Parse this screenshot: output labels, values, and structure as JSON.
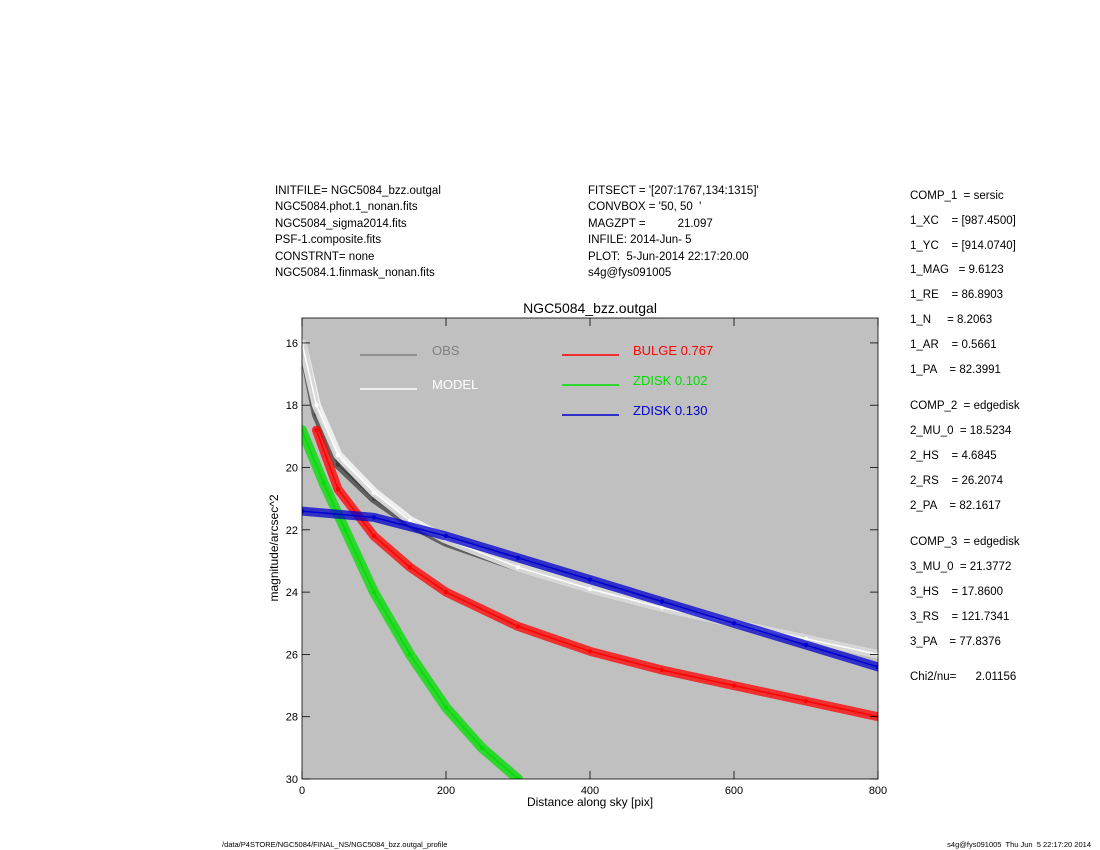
{
  "header_left": [
    "INITFILE= NGC5084_bzz.outgal",
    "NGC5084.phot.1_nonan.fits",
    "NGC5084_sigma2014.fits",
    "PSF-1.composite.fits",
    "CONSTRNT= none",
    "NGC5084.1.finmask_nonan.fits"
  ],
  "header_mid": [
    "FITSECT = '[207:1767,134:1315]'",
    "CONVBOX = '50, 50  '",
    "MAGZPT =          21.097",
    "INFILE: 2014-Jun- 5",
    "PLOT:  5-Jun-2014 22:17:20.00",
    "s4g@fys091005"
  ],
  "components": [
    {
      "lines": [
        "COMP_1  = sersic",
        "1_XC    = [987.4500]",
        "1_YC    = [914.0740]",
        "1_MAG   = 9.6123",
        "1_RE    = 86.8903",
        "1_N     = 8.2063",
        "1_AR    = 0.5661",
        "1_PA    = 82.3991"
      ]
    },
    {
      "lines": [
        "COMP_2  = edgedisk",
        "2_MU_0  = 18.5234",
        "2_HS    = 4.6845",
        "2_RS    = 26.2074",
        "2_PA    = 82.1617"
      ]
    },
    {
      "lines": [
        "COMP_3  = edgedisk",
        "3_MU_0  = 21.3772",
        "3_HS    = 17.8600",
        "3_RS    = 121.7341",
        "3_PA    = 77.8376"
      ]
    }
  ],
  "chi2": "Chi2/nu=      2.01156",
  "footer_left": "/data/P4STORE/NGC5084/FINAL_NS/NGC5084_bzz.outgal_profile",
  "footer_right": "s4g@fys091005  Thu Jun  5 22:17:20 2014",
  "chart_data": {
    "type": "scatter",
    "title": "NGC5084_bzz.outgal",
    "xlabel": "Distance along sky [pix]",
    "ylabel": "magnitude/arcsec^2",
    "xlim": [
      0,
      800
    ],
    "ylim": [
      30,
      15.2
    ],
    "y_inverted": true,
    "x_ticks": [
      0,
      200,
      400,
      600,
      800
    ],
    "y_ticks": [
      16,
      18,
      20,
      22,
      24,
      26,
      28,
      30
    ],
    "background": "#c0c0c0",
    "legend_placement": "top",
    "legend": [
      {
        "label": "OBS",
        "color": "#808080"
      },
      {
        "label": "MODEL",
        "color": "#ffffff"
      },
      {
        "label": "BULGE  0.767",
        "color": "#ff0000"
      },
      {
        "label": "ZDISK  0.102",
        "color": "#00dd00"
      },
      {
        "label": "ZDISK  0.130",
        "color": "#0000cc"
      }
    ],
    "series": [
      {
        "color": "#404040",
        "points": [
          [
            0,
            16.0
          ],
          [
            20,
            18.3
          ],
          [
            50,
            19.9
          ],
          [
            100,
            21.0
          ],
          [
            150,
            21.8
          ],
          [
            200,
            22.4
          ],
          [
            300,
            23.2
          ],
          [
            400,
            23.9
          ],
          [
            500,
            24.5
          ],
          [
            600,
            25.0
          ],
          [
            700,
            25.5
          ],
          [
            800,
            26.0
          ]
        ]
      },
      {
        "color": "#ffffff",
        "points": [
          [
            0,
            16.0
          ],
          [
            20,
            18.0
          ],
          [
            50,
            19.6
          ],
          [
            100,
            20.8
          ],
          [
            150,
            21.7
          ],
          [
            200,
            22.3
          ],
          [
            300,
            23.2
          ],
          [
            400,
            23.9
          ],
          [
            500,
            24.5
          ],
          [
            600,
            25.0
          ],
          [
            700,
            25.5
          ],
          [
            800,
            26.0
          ]
        ]
      },
      {
        "color": "#ff0000",
        "points": [
          [
            20,
            18.8
          ],
          [
            50,
            20.7
          ],
          [
            100,
            22.2
          ],
          [
            150,
            23.2
          ],
          [
            200,
            24.0
          ],
          [
            300,
            25.1
          ],
          [
            400,
            25.9
          ],
          [
            500,
            26.5
          ],
          [
            600,
            27.0
          ],
          [
            700,
            27.5
          ],
          [
            800,
            28.0
          ]
        ]
      },
      {
        "color": "#00dd00",
        "points": [
          [
            0,
            18.8
          ],
          [
            30,
            20.5
          ],
          [
            60,
            22.0
          ],
          [
            100,
            24.0
          ],
          [
            150,
            26.0
          ],
          [
            200,
            27.7
          ],
          [
            250,
            29.0
          ],
          [
            300,
            30.0
          ]
        ]
      },
      {
        "color": "#0000cc",
        "points": [
          [
            0,
            21.4
          ],
          [
            100,
            21.6
          ],
          [
            200,
            22.2
          ],
          [
            300,
            22.9
          ],
          [
            400,
            23.6
          ],
          [
            500,
            24.3
          ],
          [
            600,
            25.0
          ],
          [
            700,
            25.7
          ],
          [
            800,
            26.4
          ]
        ]
      }
    ]
  }
}
